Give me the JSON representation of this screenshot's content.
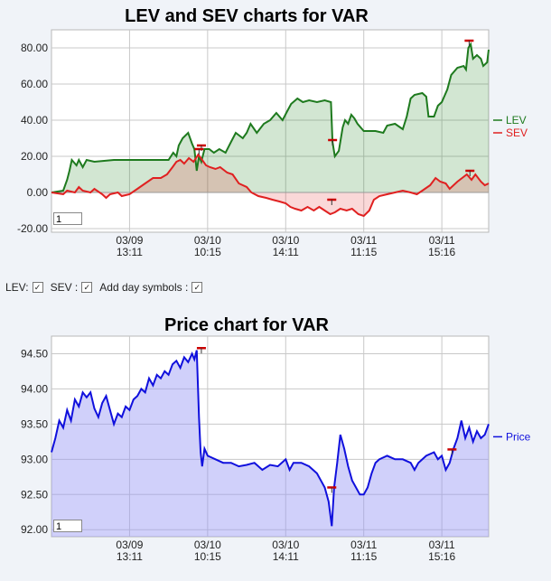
{
  "options": {
    "lev_label": "LEV:",
    "sev_label": "SEV :",
    "day_label": "Add day symbols :",
    "lev_checked": true,
    "sev_checked": true,
    "day_checked": true
  },
  "charts": {
    "lev_input": "1",
    "price_input": "1"
  },
  "colors": {
    "lev": "#1e7a1e",
    "sev": "#e02020",
    "price": "#1010dd",
    "marker": "#cc0000"
  },
  "chart_data": [
    {
      "type": "area",
      "title": "LEV and SEV charts for VAR",
      "ylim": [
        -22,
        90
      ],
      "yticks": [
        "80.00",
        "60.00",
        "40.00",
        "20.00",
        "0.00",
        "-20.00"
      ],
      "ytick_values": [
        80,
        60,
        40,
        20,
        0,
        -20
      ],
      "xticks": [
        [
          "03/09",
          "13:11"
        ],
        [
          "03/10",
          "10:15"
        ],
        [
          "03/10",
          "14:11"
        ],
        [
          "03/11",
          "11:15"
        ],
        [
          "03/11",
          "15:16"
        ]
      ],
      "xtick_values": [
        10,
        20,
        30,
        40,
        50
      ],
      "xlim": [
        0,
        56
      ],
      "grid": true,
      "legend": "right",
      "series": [
        {
          "name": "LEV",
          "values": [
            [
              0,
              0
            ],
            [
              1.5,
              1
            ],
            [
              2,
              7
            ],
            [
              2.3,
              12
            ],
            [
              2.6,
              18
            ],
            [
              3.2,
              15
            ],
            [
              3.5,
              18
            ],
            [
              4,
              14
            ],
            [
              4.5,
              18
            ],
            [
              5.5,
              17
            ],
            [
              8,
              18
            ],
            [
              15,
              18
            ],
            [
              15.6,
              22
            ],
            [
              16,
              20
            ],
            [
              16.3,
              26
            ],
            [
              16.8,
              30
            ],
            [
              17.5,
              33
            ],
            [
              18,
              27
            ],
            [
              18.3,
              24
            ],
            [
              18.6,
              12
            ],
            [
              18.9,
              20
            ],
            [
              19.2,
              17
            ],
            [
              19.6,
              24
            ],
            [
              20.2,
              24
            ],
            [
              20.8,
              22
            ],
            [
              21.5,
              24
            ],
            [
              22.3,
              22
            ],
            [
              23,
              28
            ],
            [
              23.6,
              33
            ],
            [
              24.5,
              30
            ],
            [
              25,
              33
            ],
            [
              25.5,
              38
            ],
            [
              26.3,
              33
            ],
            [
              27.2,
              38
            ],
            [
              28,
              40
            ],
            [
              28.8,
              44
            ],
            [
              29.6,
              40
            ],
            [
              30.2,
              45
            ],
            [
              30.7,
              49
            ],
            [
              31.5,
              52
            ],
            [
              32.2,
              50
            ],
            [
              33,
              51
            ],
            [
              34,
              50
            ],
            [
              35,
              51
            ],
            [
              35.8,
              50
            ],
            [
              36,
              28
            ],
            [
              36.3,
              20
            ],
            [
              36.8,
              23
            ],
            [
              37.3,
              36
            ],
            [
              37.6,
              40
            ],
            [
              38,
              38
            ],
            [
              38.4,
              43
            ],
            [
              38.8,
              41
            ],
            [
              39.2,
              38
            ],
            [
              40,
              34
            ],
            [
              41.5,
              34
            ],
            [
              42.5,
              33
            ],
            [
              43,
              37
            ],
            [
              44,
              38
            ],
            [
              45,
              35
            ],
            [
              45.5,
              42
            ],
            [
              46,
              52
            ],
            [
              46.5,
              54
            ],
            [
              47.5,
              55
            ],
            [
              48,
              53
            ],
            [
              48.3,
              42
            ],
            [
              49,
              42
            ],
            [
              49.5,
              48
            ],
            [
              50,
              50
            ],
            [
              50.7,
              57
            ],
            [
              51.2,
              65
            ],
            [
              52,
              69
            ],
            [
              52.8,
              70
            ],
            [
              53.1,
              68
            ],
            [
              53.4,
              80
            ],
            [
              53.7,
              82
            ],
            [
              54,
              74
            ],
            [
              54.5,
              76
            ],
            [
              55,
              74
            ],
            [
              55.3,
              70
            ],
            [
              55.8,
              72
            ],
            [
              56,
              79
            ]
          ]
        },
        {
          "name": "SEV",
          "values": [
            [
              0,
              0
            ],
            [
              1.5,
              -1
            ],
            [
              2,
              1
            ],
            [
              3,
              0
            ],
            [
              3.5,
              3
            ],
            [
              4,
              1
            ],
            [
              5,
              0
            ],
            [
              5.5,
              2
            ],
            [
              6.5,
              -1
            ],
            [
              7,
              -3
            ],
            [
              7.5,
              -1
            ],
            [
              8.5,
              0
            ],
            [
              9,
              -2
            ],
            [
              10,
              -1
            ],
            [
              11,
              2
            ],
            [
              12,
              5
            ],
            [
              13,
              8
            ],
            [
              14,
              8
            ],
            [
              14.8,
              10
            ],
            [
              15.5,
              14
            ],
            [
              16,
              17
            ],
            [
              16.5,
              18
            ],
            [
              17,
              16
            ],
            [
              17.6,
              19
            ],
            [
              18.2,
              17
            ],
            [
              18.8,
              21
            ],
            [
              19.3,
              18
            ],
            [
              19.8,
              15
            ],
            [
              20.3,
              14
            ],
            [
              21,
              13
            ],
            [
              21.6,
              14
            ],
            [
              22.5,
              11
            ],
            [
              23.2,
              10
            ],
            [
              24,
              5
            ],
            [
              25,
              3
            ],
            [
              25.6,
              0
            ],
            [
              26.5,
              -2
            ],
            [
              27.5,
              -3
            ],
            [
              28.3,
              -4
            ],
            [
              29.2,
              -5
            ],
            [
              30,
              -6
            ],
            [
              30.6,
              -8
            ],
            [
              31.2,
              -9
            ],
            [
              32,
              -10
            ],
            [
              32.8,
              -8
            ],
            [
              33.6,
              -10
            ],
            [
              34.3,
              -8
            ],
            [
              35,
              -10
            ],
            [
              35.7,
              -12
            ],
            [
              36.3,
              -11
            ],
            [
              37,
              -9
            ],
            [
              37.8,
              -10
            ],
            [
              38.5,
              -9
            ],
            [
              39.3,
              -12
            ],
            [
              40,
              -13
            ],
            [
              40.7,
              -10
            ],
            [
              41.3,
              -4
            ],
            [
              42,
              -2
            ],
            [
              43,
              -1
            ],
            [
              44,
              0
            ],
            [
              45,
              1
            ],
            [
              46,
              0
            ],
            [
              46.8,
              -1
            ],
            [
              47.5,
              1
            ],
            [
              48.5,
              4
            ],
            [
              49.2,
              8
            ],
            [
              49.8,
              6
            ],
            [
              50.5,
              5
            ],
            [
              51,
              2
            ],
            [
              51.5,
              4
            ],
            [
              52,
              6
            ],
            [
              52.6,
              8
            ],
            [
              53.2,
              10
            ],
            [
              53.8,
              7
            ],
            [
              54.3,
              10
            ],
            [
              55,
              6
            ],
            [
              55.5,
              4
            ],
            [
              56,
              5
            ]
          ]
        }
      ],
      "annotations": [
        "LEV",
        "SEV"
      ]
    },
    {
      "type": "area",
      "title": "Price chart for VAR",
      "ylim": [
        91.9,
        94.75
      ],
      "yticks": [
        "94.50",
        "94.00",
        "93.50",
        "93.00",
        "92.50",
        "92.00"
      ],
      "ytick_values": [
        94.5,
        94.0,
        93.5,
        93.0,
        92.5,
        92.0
      ],
      "xticks": [
        [
          "03/09",
          "13:11"
        ],
        [
          "03/10",
          "10:15"
        ],
        [
          "03/10",
          "14:11"
        ],
        [
          "03/11",
          "11:15"
        ],
        [
          "03/11",
          "15:16"
        ]
      ],
      "xtick_values": [
        10,
        20,
        30,
        40,
        50
      ],
      "xlim": [
        0,
        56
      ],
      "grid": true,
      "legend": "right",
      "series": [
        {
          "name": "Price",
          "values": [
            [
              0,
              93.1
            ],
            [
              0.5,
              93.3
            ],
            [
              1,
              93.55
            ],
            [
              1.5,
              93.45
            ],
            [
              2,
              93.7
            ],
            [
              2.5,
              93.55
            ],
            [
              3,
              93.85
            ],
            [
              3.5,
              93.75
            ],
            [
              4,
              93.95
            ],
            [
              4.5,
              93.88
            ],
            [
              5,
              93.95
            ],
            [
              5.5,
              93.72
            ],
            [
              6,
              93.6
            ],
            [
              6.5,
              93.8
            ],
            [
              7,
              93.9
            ],
            [
              7.5,
              93.7
            ],
            [
              8,
              93.5
            ],
            [
              8.5,
              93.65
            ],
            [
              9,
              93.6
            ],
            [
              9.5,
              93.75
            ],
            [
              10,
              93.7
            ],
            [
              10.5,
              93.85
            ],
            [
              11,
              93.9
            ],
            [
              11.5,
              94.0
            ],
            [
              12,
              93.95
            ],
            [
              12.5,
              94.15
            ],
            [
              13,
              94.05
            ],
            [
              13.5,
              94.2
            ],
            [
              14,
              94.15
            ],
            [
              14.5,
              94.25
            ],
            [
              15,
              94.2
            ],
            [
              15.5,
              94.35
            ],
            [
              16,
              94.4
            ],
            [
              16.5,
              94.3
            ],
            [
              17,
              94.45
            ],
            [
              17.5,
              94.38
            ],
            [
              18,
              94.5
            ],
            [
              18.3,
              94.42
            ],
            [
              18.6,
              94.55
            ],
            [
              18.9,
              93.6
            ],
            [
              19.1,
              93.1
            ],
            [
              19.3,
              92.9
            ],
            [
              19.6,
              93.15
            ],
            [
              20,
              93.05
            ],
            [
              21,
              93.0
            ],
            [
              22,
              92.95
            ],
            [
              23,
              92.95
            ],
            [
              24,
              92.9
            ],
            [
              25,
              92.92
            ],
            [
              26,
              92.95
            ],
            [
              27,
              92.85
            ],
            [
              28,
              92.92
            ],
            [
              29,
              92.9
            ],
            [
              30,
              93.0
            ],
            [
              30.5,
              92.85
            ],
            [
              31,
              92.95
            ],
            [
              32,
              92.95
            ],
            [
              33,
              92.9
            ],
            [
              34,
              92.8
            ],
            [
              34.5,
              92.7
            ],
            [
              35,
              92.6
            ],
            [
              35.5,
              92.4
            ],
            [
              35.9,
              92.05
            ],
            [
              36.2,
              92.6
            ],
            [
              36.6,
              92.95
            ],
            [
              37,
              93.35
            ],
            [
              37.5,
              93.15
            ],
            [
              38,
              92.9
            ],
            [
              38.5,
              92.7
            ],
            [
              39,
              92.6
            ],
            [
              39.5,
              92.5
            ],
            [
              40,
              92.5
            ],
            [
              40.5,
              92.6
            ],
            [
              41,
              92.8
            ],
            [
              41.5,
              92.95
            ],
            [
              42,
              93.0
            ],
            [
              43,
              93.05
            ],
            [
              44,
              93.0
            ],
            [
              45,
              93.0
            ],
            [
              46,
              92.95
            ],
            [
              46.5,
              92.85
            ],
            [
              47,
              92.95
            ],
            [
              48,
              93.05
            ],
            [
              49,
              93.1
            ],
            [
              49.5,
              93.0
            ],
            [
              50,
              93.05
            ],
            [
              50.5,
              92.85
            ],
            [
              51,
              92.95
            ],
            [
              51.5,
              93.15
            ],
            [
              52,
              93.3
            ],
            [
              52.5,
              93.55
            ],
            [
              53,
              93.3
            ],
            [
              53.5,
              93.45
            ],
            [
              54,
              93.25
            ],
            [
              54.5,
              93.4
            ],
            [
              55,
              93.3
            ],
            [
              55.5,
              93.35
            ],
            [
              56,
              93.5
            ]
          ]
        }
      ],
      "markers": [
        19.2,
        35.9,
        51.3
      ]
    }
  ]
}
